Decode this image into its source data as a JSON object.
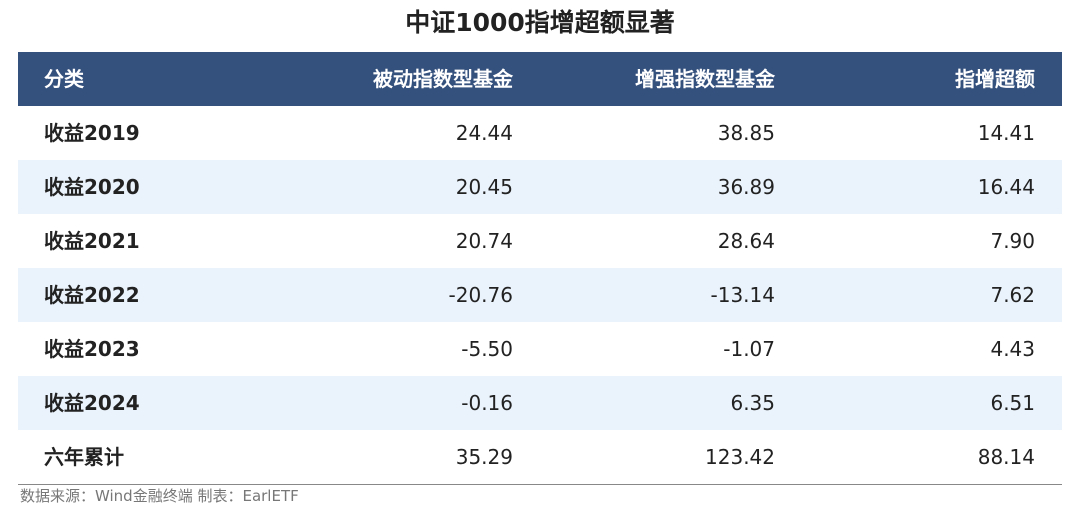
{
  "title": "中证1000指增超额显著",
  "table": {
    "header": [
      "分类",
      "被动指数型基金",
      "增强指数型基金",
      "指增超额"
    ],
    "rows": [
      [
        "收益2019",
        "24.44",
        "38.85",
        "14.41"
      ],
      [
        "收益2020",
        "20.45",
        "36.89",
        "16.44"
      ],
      [
        "收益2021",
        "20.74",
        "28.64",
        "7.90"
      ],
      [
        "收益2022",
        "-20.76",
        "-13.14",
        "7.62"
      ],
      [
        "收益2023",
        "-5.50",
        "-1.07",
        "4.43"
      ],
      [
        "收益2024",
        "-0.16",
        "6.35",
        "6.51"
      ],
      [
        "六年累计",
        "35.29",
        "123.42",
        "88.14"
      ]
    ]
  },
  "source": "数据来源：Wind金融终端 制表：EarlETF"
}
